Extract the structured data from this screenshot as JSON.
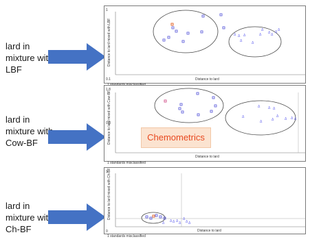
{
  "labels": [
    "lard in\nmixture with\nLBF",
    "lard in\nmixture with\nCow-BF",
    "lard in\nmixture with\nCh-BF"
  ],
  "badge": "Chemometrics",
  "colors": {
    "arrow": "#4472c4",
    "square": "#5050d8",
    "triangle": "#6a6af0",
    "highlight": "#e05a1a",
    "pink": "#d0508a"
  },
  "plots": [
    {
      "ylabel": "Distance to lard mixed with LBF",
      "xlabel": "Distance to lard",
      "footnote": "1 standards misclassified",
      "x_start": "0.1",
      "y_top": "1",
      "y_mid": "1.5"
    },
    {
      "ylabel": "Distance to lard mixed with Cow-BF",
      "xlabel": "Distance to lard",
      "footnote": "1 standards misclassified",
      "x_start": "",
      "y_top": "1.8",
      "y_mid": "0.8"
    },
    {
      "ylabel": "Distance to lard mixed with Ch-BF",
      "xlabel": "Distance to lard",
      "footnote": "1 standards misclassified",
      "x_start": "0",
      "y_top": "1",
      "y_mid": ""
    }
  ]
}
